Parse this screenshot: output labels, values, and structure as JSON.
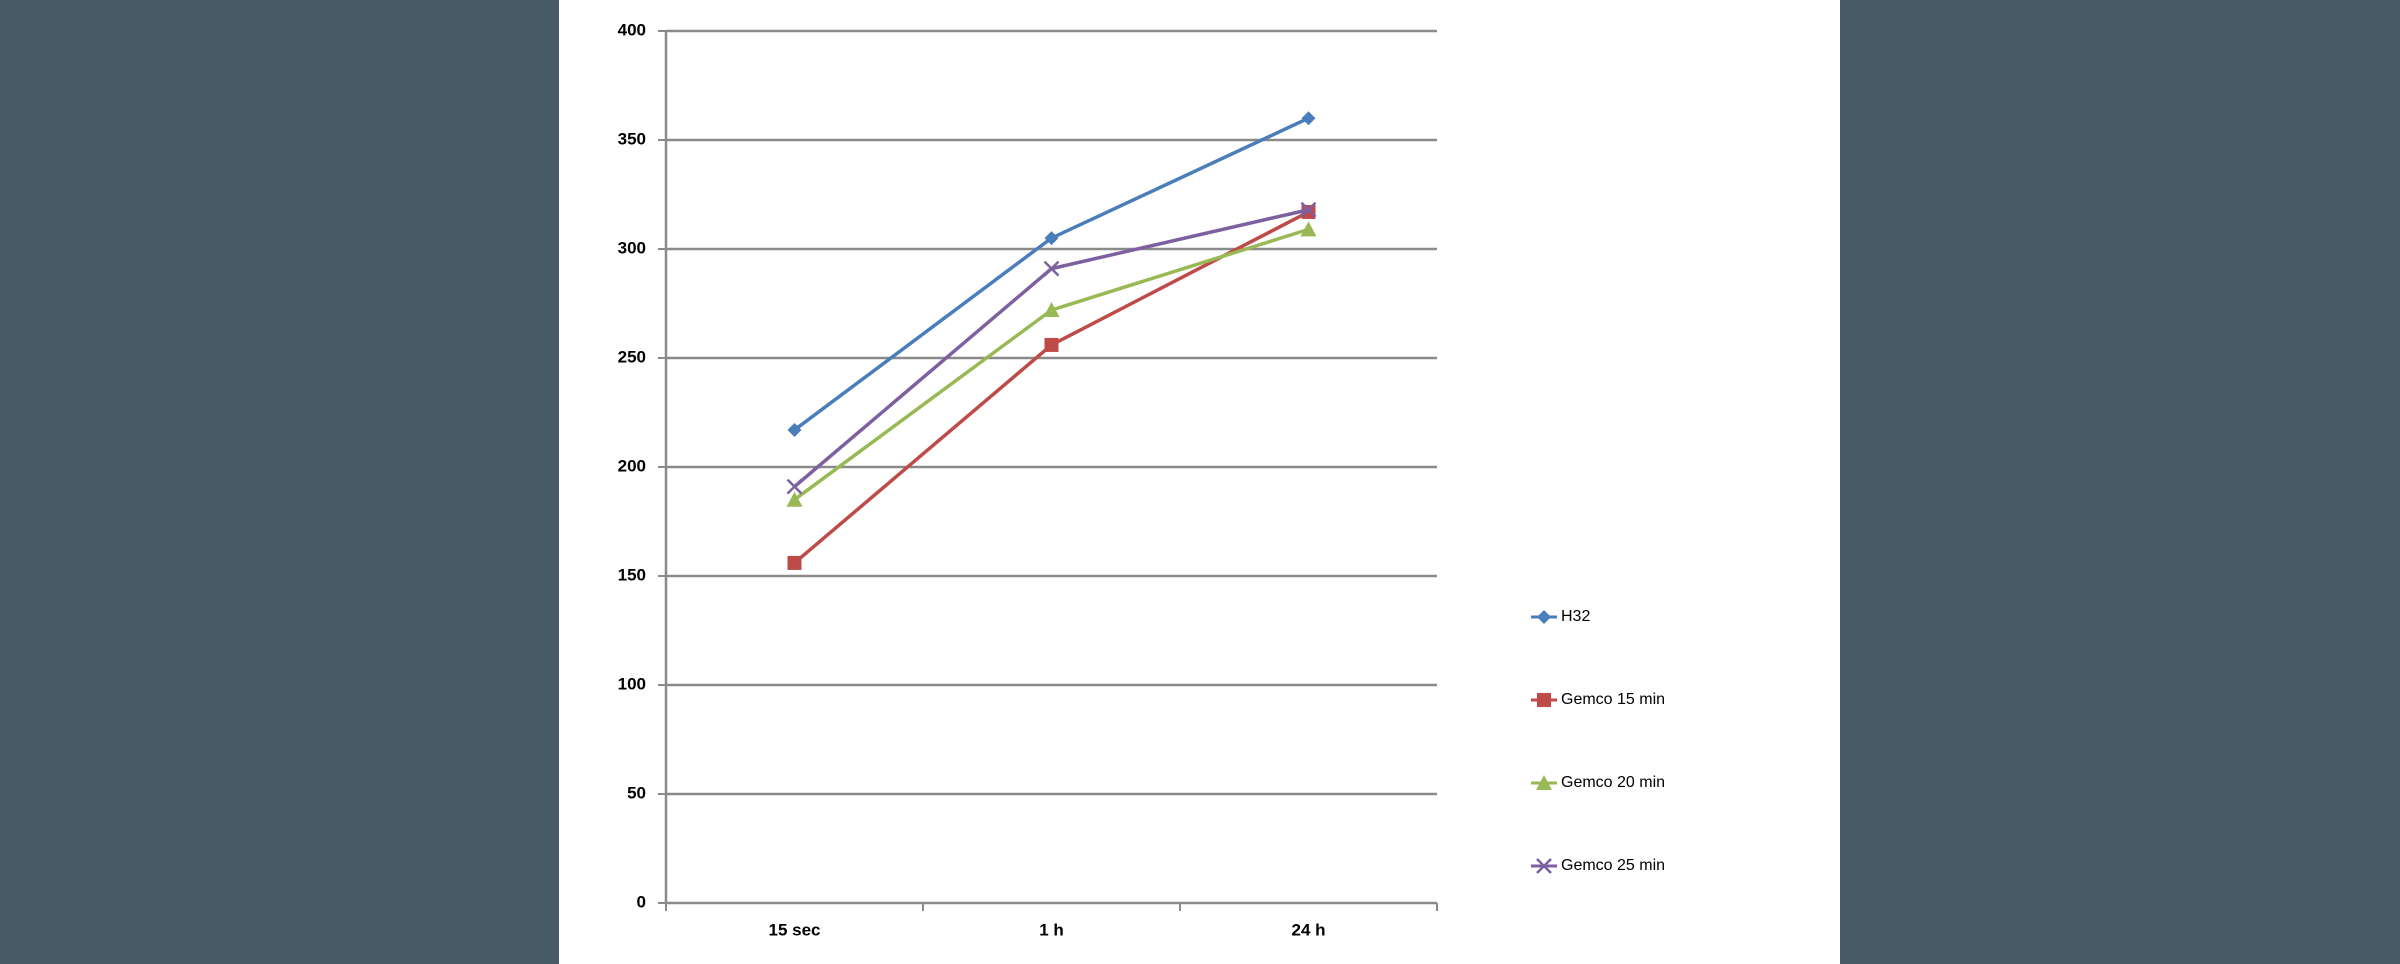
{
  "chart_data": {
    "type": "line",
    "categories": [
      "15 sec",
      "1 h",
      "24 h"
    ],
    "series": [
      {
        "name": "H32",
        "color": "#4a7ebb",
        "marker": "diamond",
        "values": [
          217,
          305,
          360
        ]
      },
      {
        "name": "Gemco 15 min",
        "color": "#be4b48",
        "marker": "square",
        "values": [
          156,
          256,
          317
        ]
      },
      {
        "name": "Gemco 20 min",
        "color": "#98b954",
        "marker": "triangle",
        "values": [
          185,
          272,
          309
        ]
      },
      {
        "name": "Gemco 25 min",
        "color": "#7d60a0",
        "marker": "x",
        "values": [
          191,
          291,
          318
        ]
      }
    ],
    "ylim": [
      0,
      400
    ],
    "yticks": [
      0,
      50,
      100,
      150,
      200,
      250,
      300,
      350,
      400
    ],
    "grid": true,
    "legend": "right"
  }
}
